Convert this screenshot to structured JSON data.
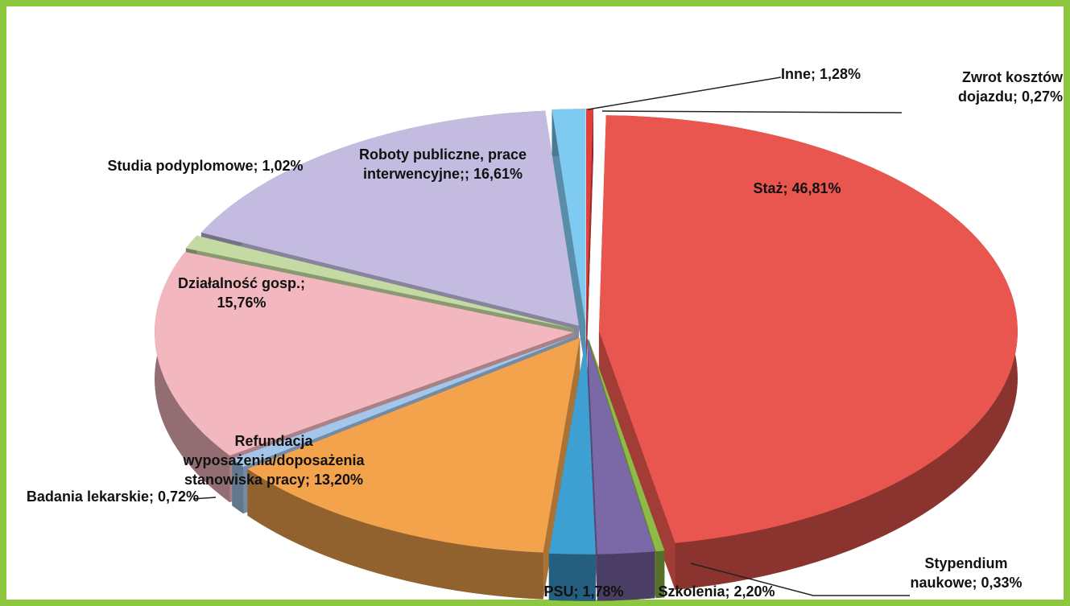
{
  "chart_data": {
    "type": "pie",
    "labels": [
      "Zwrot kosztów dojazdu; 0,27%",
      "Staż; 46,81%",
      "Stypendium naukowe; 0,33%",
      "Szkolenia; 2,20%",
      "PSU; 1,78%",
      "Refundacja wyposażenia/doposażenia stanowiska pracy; 13,20%",
      "Badania lekarskie; 0,72%",
      "Działalność gosp.; 15,76%",
      "Studia podyplomowe; 1,02%",
      "Roboty publiczne, prace interwencyjne;; 16,61%",
      "Inne; 1,28%"
    ],
    "values": [
      0.27,
      46.81,
      0.33,
      2.2,
      1.78,
      13.2,
      0.72,
      15.76,
      1.02,
      16.61,
      1.28
    ],
    "colors": [
      "#e2403c",
      "#e8564f",
      "#8dbb45",
      "#7b68a6",
      "#3e9fd3",
      "#f4a34d",
      "#a4c6ea",
      "#f3b8bf",
      "#c3dba2",
      "#c4bce0",
      "#7fcaf0"
    ]
  }
}
